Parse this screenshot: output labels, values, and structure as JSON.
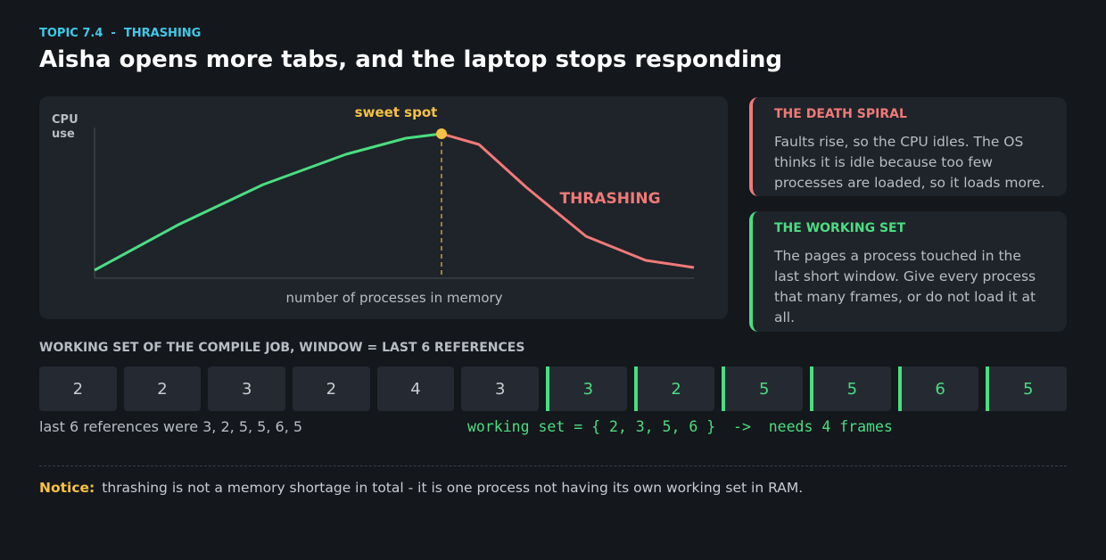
{
  "header": {
    "topic": "TOPIC 7.4  -  THRASHING",
    "title": "Aisha opens more tabs, and the laptop stops responding"
  },
  "diagram": {
    "y_label": "CPU use",
    "peak_label": "sweet spot",
    "thrash_label": "THRASHING",
    "x_label": "number of processes in memory"
  },
  "cards": [
    {
      "title": "THE DEATH SPIRAL",
      "body": "Faults rise, so the CPU idles. The OS thinks it is idle because too few processes are loaded, so it loads more."
    },
    {
      "title": "THE WORKING SET",
      "body": "The pages a process touched in the last short window. Give every process that many frames, or do not load it at all."
    }
  ],
  "working_set": {
    "title": "WORKING SET OF THE COMPILE JOB, WINDOW = LAST 6 REFERENCES",
    "references": [
      "2",
      "2",
      "3",
      "2",
      "4",
      "3",
      "3",
      "2",
      "5",
      "5",
      "6",
      "5"
    ],
    "caption_left": "last 6 references were 3, 2, 5, 5, 6, 5",
    "caption_right": "working set = { 2, 3, 5, 6 }  ->  needs 4 frames"
  },
  "notice": {
    "label": "Notice:",
    "text": "thrashing is not a memory shortage in total - it is one process not having its own working set in RAM."
  }
}
